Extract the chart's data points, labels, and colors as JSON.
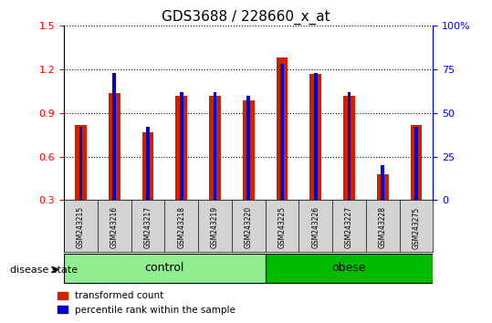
{
  "title": "GDS3688 / 228660_x_at",
  "samples": [
    "GSM243215",
    "GSM243216",
    "GSM243217",
    "GSM243218",
    "GSM243219",
    "GSM243220",
    "GSM243225",
    "GSM243226",
    "GSM243227",
    "GSM243228",
    "GSM243275"
  ],
  "transformed_count": [
    0.82,
    1.04,
    0.77,
    1.02,
    1.02,
    0.99,
    1.28,
    1.17,
    1.02,
    0.48,
    0.82
  ],
  "percentile_rank": [
    42,
    73,
    42,
    62,
    62,
    60,
    78,
    73,
    62,
    20,
    42
  ],
  "groups": [
    {
      "label": "control",
      "start": 0,
      "end": 6,
      "color": "#90ee90"
    },
    {
      "label": "obese",
      "start": 6,
      "end": 11,
      "color": "#00bb00"
    }
  ],
  "left_ylim": [
    0.3,
    1.5
  ],
  "right_ylim": [
    0,
    100
  ],
  "left_yticks": [
    0.3,
    0.6,
    0.9,
    1.2,
    1.5
  ],
  "right_yticks": [
    0,
    25,
    50,
    75,
    100
  ],
  "right_yticklabels": [
    "0",
    "25",
    "50",
    "75",
    "100%"
  ],
  "bar_color_red": "#cc2200",
  "bar_color_blue": "#0000cc",
  "grid_color": "#000000",
  "bg_color": "#ffffff",
  "tick_area_color": "#d3d3d3",
  "bar_width": 0.35,
  "disease_state_label": "disease state"
}
